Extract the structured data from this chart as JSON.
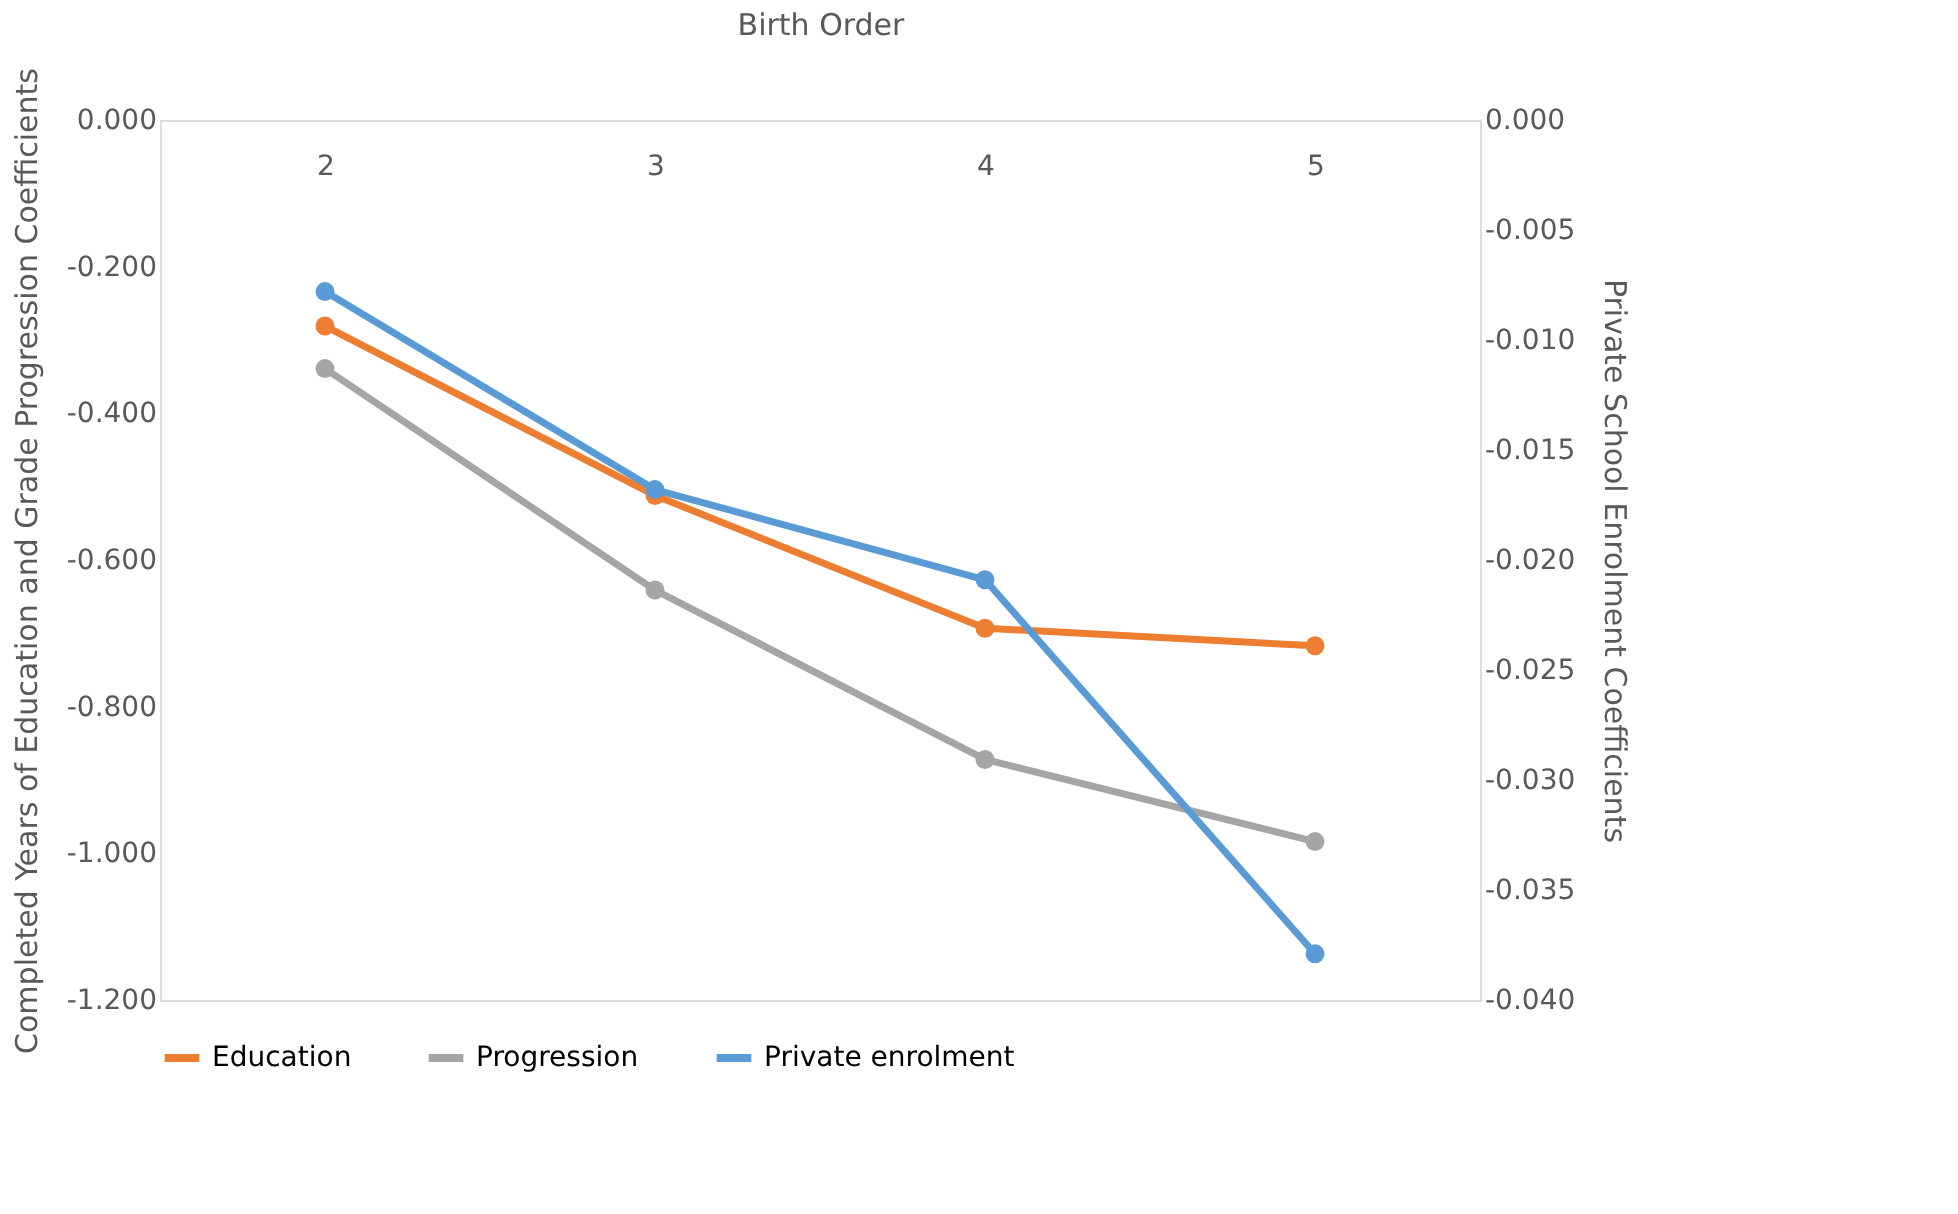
{
  "chart_data": {
    "type": "line",
    "xlabel": "Birth Order",
    "ylabel": "Completed Years of Education and Grade Progression Coefficients",
    "y2label": "Private School Enrolment Coefficients",
    "categories": [
      "2",
      "3",
      "4",
      "5"
    ],
    "series": [
      {
        "name": "Education",
        "color": "#ed7d31",
        "values": [
          -0.281,
          -0.512,
          -0.693,
          -0.717
        ]
      },
      {
        "name": "Progression",
        "color": "#a5a5a5",
        "values": [
          -0.339,
          -0.641,
          -0.872,
          -0.984
        ]
      },
      {
        "name": "Private enrolment",
        "color": "#5b9bd5",
        "axis": "y2",
        "values": [
          -0.0078,
          -0.0168,
          -0.0209,
          -0.0379
        ]
      }
    ],
    "ylim": [
      -1.2,
      0
    ],
    "yticks": [
      {
        "value": 0,
        "label": "0.000"
      },
      {
        "value": -0.2,
        "label": "-0.200"
      },
      {
        "value": -0.4,
        "label": "-0.400"
      },
      {
        "value": -0.6,
        "label": "-0.600"
      },
      {
        "value": -0.8,
        "label": "-0.800"
      },
      {
        "value": -1.0,
        "label": "-1.000"
      },
      {
        "value": -1.2,
        "label": "-1.200"
      }
    ],
    "y2lim": [
      -0.04,
      0
    ],
    "y2ticks": [
      {
        "value": 0,
        "label": "0.000"
      },
      {
        "value": -0.005,
        "label": "-0.005"
      },
      {
        "value": -0.01,
        "label": "-0.010"
      },
      {
        "value": -0.015,
        "label": "-0.015"
      },
      {
        "value": -0.02,
        "label": "-0.020"
      },
      {
        "value": -0.025,
        "label": "-0.025"
      },
      {
        "value": -0.03,
        "label": "-0.030"
      },
      {
        "value": -0.035,
        "label": "-0.035"
      },
      {
        "value": -0.04,
        "label": "-0.040"
      }
    ],
    "grid": false,
    "legend": "bottom",
    "marker": "circle",
    "line_style": "solid"
  }
}
